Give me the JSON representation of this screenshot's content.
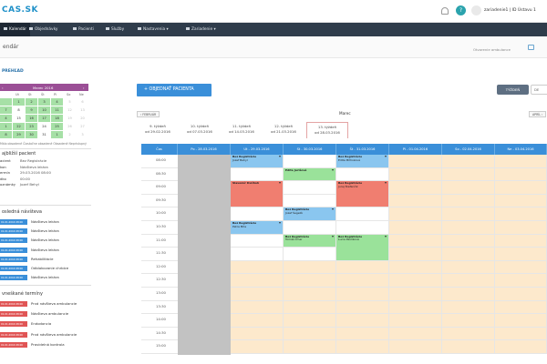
{
  "header": {
    "logo": "CAS.SK",
    "username": "zariadenie1 | ID Ústavu 1",
    "help": "?"
  },
  "nav": {
    "items": [
      {
        "label": "Kalendár",
        "icon": "calendar-icon",
        "active": true
      },
      {
        "label": "Objednávky",
        "icon": "car-icon",
        "active": false
      },
      {
        "label": "Pacienti",
        "icon": "users-icon",
        "active": false
      },
      {
        "label": "Služby",
        "icon": "tools-icon",
        "active": false
      },
      {
        "label": "Nastavenia ▾",
        "icon": "gear-icon",
        "active": false
      },
      {
        "label": "Zariadenie ▾",
        "icon": "gear-icon",
        "active": false
      }
    ]
  },
  "subbar": {
    "title": "endár",
    "right_text": "Otvorenie ambulance"
  },
  "sidebar": {
    "overview_title": "PREHĽAD",
    "mini_calendar": {
      "prev": "‹",
      "next": "›",
      "month": "Marec 2016",
      "weekdays": [
        "",
        "Ut",
        "St",
        "Št",
        "Pi",
        "So",
        "Ne"
      ],
      "rows": [
        [
          {
            "d": "",
            "c": "g"
          },
          {
            "d": "1",
            "c": "g"
          },
          {
            "d": "2",
            "c": "g"
          },
          {
            "d": "3",
            "c": "g"
          },
          {
            "d": "4",
            "c": "g"
          },
          {
            "d": "5",
            "c": "w"
          },
          {
            "d": "6",
            "c": "w"
          }
        ],
        [
          {
            "d": "7",
            "c": "g"
          },
          {
            "d": "8",
            "c": ""
          },
          {
            "d": "9",
            "c": "g"
          },
          {
            "d": "10",
            "c": "g"
          },
          {
            "d": "11",
            "c": "g"
          },
          {
            "d": "12",
            "c": "w"
          },
          {
            "d": "13",
            "c": "w"
          }
        ],
        [
          {
            "d": "4",
            "c": "g"
          },
          {
            "d": "15",
            "c": ""
          },
          {
            "d": "16",
            "c": "g"
          },
          {
            "d": "17",
            "c": "g"
          },
          {
            "d": "18",
            "c": "g"
          },
          {
            "d": "19",
            "c": "w"
          },
          {
            "d": "20",
            "c": "w"
          }
        ],
        [
          {
            "d": "1",
            "c": "g"
          },
          {
            "d": "22",
            "c": "g"
          },
          {
            "d": "23",
            "c": "g"
          },
          {
            "d": "24",
            "c": ""
          },
          {
            "d": "25",
            "c": "g"
          },
          {
            "d": "26",
            "c": "w"
          },
          {
            "d": "27",
            "c": "w"
          }
        ],
        [
          {
            "d": "8",
            "c": "g"
          },
          {
            "d": "29",
            "c": "g"
          },
          {
            "d": "30",
            "c": "g"
          },
          {
            "d": "31",
            "c": ""
          },
          {
            "d": "1",
            "c": "g"
          },
          {
            "d": "2",
            "c": "w"
          },
          {
            "d": "3",
            "c": "w"
          }
        ]
      ]
    },
    "legend": "Málo obsadené  Čiastočne obsadené  Obsadené  Neprístupný",
    "patient": {
      "title": "ajbližší pacient",
      "fields": [
        {
          "label": "acient",
          "value": "Bez Registrácie"
        },
        {
          "label": "kon",
          "value": "Návšteva lekára"
        },
        {
          "label": "ermín",
          "value": "29.03.2016 08:00"
        },
        {
          "label": "dko",
          "value": "00:00"
        },
        {
          "label": "oznámky",
          "value": "Jozef Behyl"
        }
      ]
    },
    "last_visits_title": "osledná návšteva",
    "last_visits": [
      {
        "date": "01.01.2016 08:00",
        "name": "Návšteva lekára"
      },
      {
        "date": "01.01.2016 08:00",
        "name": "Návšteva lekára"
      },
      {
        "date": "01.01.2016 08:00",
        "name": "Návšteva lekára"
      },
      {
        "date": "01.01.2016 08:00",
        "name": "Návšteva lekára"
      },
      {
        "date": "01.01.2016 08:00",
        "name": "Rehabilitácie"
      },
      {
        "date": "01.01.2016 08:00",
        "name": "Odblokovanie chrbice"
      },
      {
        "date": "01.01.2016 08:00",
        "name": "Návšteva lekára"
      }
    ],
    "missed_title": "vneškané termíny",
    "missed": [
      {
        "date": "01.01.2016 08:00",
        "name": "Prvá návšteva ambulancie"
      },
      {
        "date": "01.01.2016 08:00",
        "name": "Návšteva ambulancie"
      },
      {
        "date": "01.01.2016 08:00",
        "name": "Endodoncia"
      },
      {
        "date": "01.01.2016 08:00",
        "name": "Prvá návšteva ambulancie"
      },
      {
        "date": "01.01.2016 08:00",
        "name": "Pravidelná kontrola"
      }
    ]
  },
  "main": {
    "order_button": "+ OBJEDNAŤ PACIENTA",
    "week_button": "TÝŽDEŇ",
    "day_button": "DE",
    "prev_month": "‹ FEBRUÁR",
    "next_month": "APRÍL ›",
    "current_month": "Marec",
    "weeks": [
      {
        "line1": "9. týždeň",
        "line2": "od 29.02.2016",
        "selected": false
      },
      {
        "line1": "10. týždeň",
        "line2": "od 07.03.2016",
        "selected": false
      },
      {
        "line1": "11. týždeň",
        "line2": "od 14.03.2016",
        "selected": false
      },
      {
        "line1": "12. týždeň",
        "line2": "od 21.03.2016",
        "selected": false
      },
      {
        "line1": "13. týždeň",
        "line2": "od 28.03.2016",
        "selected": true
      }
    ],
    "columns": [
      "Čas",
      "Po - 28.03.2016",
      "Ut - 29.03.2016",
      "St - 30.03.2016",
      "Št - 31.03.2016",
      "Pi - 01.04.2016",
      "So - 02.04.2016",
      "Ne - 03.04.2016"
    ],
    "times": [
      "08:00",
      "08:30",
      "09:00",
      "09:30",
      "10:00",
      "10:30",
      "11:00",
      "11:30",
      "12:00",
      "12:30",
      "13:00",
      "13:30",
      "14:00",
      "14:30",
      "15:00"
    ],
    "appointments": [
      {
        "day": 1,
        "slot": 0,
        "len": 1,
        "color": "b",
        "title": "Bez Registrácie",
        "sub": "Jozef Behyl"
      },
      {
        "day": 2,
        "slot": 1,
        "len": 1,
        "color": "g",
        "title": "Edita Jurišová",
        "sub": ""
      },
      {
        "day": 3,
        "slot": 0,
        "len": 1,
        "color": "b",
        "title": "Bez Registrácie",
        "sub": "Edita Mňhoková"
      },
      {
        "day": 1,
        "slot": 2,
        "len": 2,
        "color": "r",
        "title": "Slavomír Kvičkoh",
        "sub": ""
      },
      {
        "day": 3,
        "slot": 2,
        "len": 2,
        "color": "r",
        "title": "Bez Registrácie",
        "sub": "Juraj Štefančik"
      },
      {
        "day": 2,
        "slot": 4,
        "len": 1,
        "color": "b",
        "title": "Bez Registrácie",
        "sub": "Jozef Šegelík"
      },
      {
        "day": 1,
        "slot": 5,
        "len": 1,
        "color": "b",
        "title": "Bez Registrácie",
        "sub": "Petra Mňa"
      },
      {
        "day": 2,
        "slot": 6,
        "len": 1,
        "color": "g",
        "title": "Bez Registrácie",
        "sub": "Tomáš Čmer"
      },
      {
        "day": 3,
        "slot": 6,
        "len": 2,
        "color": "g",
        "title": "Bez Registrácie",
        "sub": "Lucia Pavlíková"
      }
    ]
  }
}
